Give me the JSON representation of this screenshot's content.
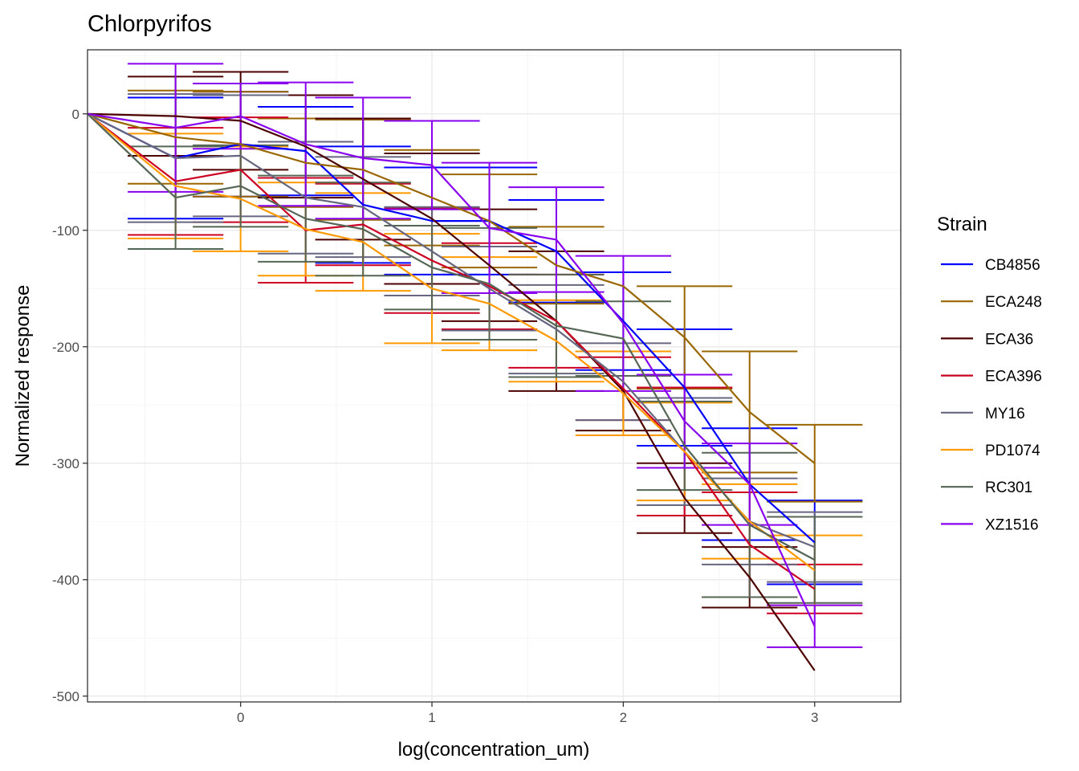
{
  "chart_data": {
    "type": "line",
    "title": "Chlorpyrifos",
    "xlabel": "log(concentration_um)",
    "ylabel": "Normalized response",
    "xlim": [
      -0.8,
      3.45
    ],
    "ylim": [
      -505,
      55
    ],
    "x_ticks": [
      0,
      1,
      2,
      3
    ],
    "x_tick_labels": [
      "0",
      "1",
      "2",
      "3"
    ],
    "y_ticks": [
      0,
      -100,
      -200,
      -300,
      -400,
      -500
    ],
    "y_tick_labels": [
      "0",
      "-100",
      "-200",
      "-300",
      "-400",
      "-500"
    ],
    "grid": true,
    "legend_title": "Strain",
    "legend_position": "right",
    "x": [
      -0.8,
      -0.34,
      0,
      0.34,
      0.64,
      1.0,
      1.3,
      1.65,
      2.0,
      2.32,
      2.66,
      3.0
    ],
    "series": [
      {
        "name": "CB4856",
        "color": "#0000ff",
        "values": [
          0,
          -38,
          -26,
          -32,
          -78,
          -92,
          -92,
          -118,
          -178,
          -235,
          -318,
          -368
        ],
        "err": [
          0,
          52,
          45,
          38,
          50,
          46,
          46,
          44,
          42,
          50,
          48,
          36
        ]
      },
      {
        "name": "ECA248",
        "color": "#996600",
        "values": [
          0,
          -20,
          -26,
          -42,
          -48,
          -72,
          -92,
          -130,
          -148,
          -192,
          -256,
          -300
        ],
        "err": [
          0,
          40,
          45,
          38,
          43,
          41,
          40,
          33,
          0,
          44,
          52,
          33
        ]
      },
      {
        "name": "ECA36",
        "color": "#4d0000",
        "values": [
          0,
          -2,
          -6,
          -28,
          -56,
          -90,
          -130,
          -178,
          -238,
          -330,
          -398,
          -478
        ],
        "err": [
          0,
          34,
          42,
          44,
          52,
          56,
          48,
          60,
          34,
          30,
          26,
          0
        ]
      },
      {
        "name": "ECA396",
        "color": "#cc0022",
        "values": [
          0,
          -58,
          -48,
          -100,
          -95,
          -126,
          -148,
          -178,
          -236,
          -290,
          -370,
          -408
        ],
        "err": [
          0,
          46,
          45,
          45,
          35,
          45,
          37,
          40,
          27,
          55,
          45,
          21
        ]
      },
      {
        "name": "MY16",
        "color": "#666680",
        "values": [
          0,
          -38,
          -36,
          -72,
          -80,
          -118,
          -150,
          -185,
          -230,
          -290,
          -350,
          -372
        ],
        "err": [
          0,
          55,
          52,
          48,
          43,
          38,
          36,
          38,
          33,
          46,
          37,
          30
        ]
      },
      {
        "name": "PD1074",
        "color": "#ff9900",
        "values": [
          0,
          -62,
          -73,
          -99,
          -110,
          -150,
          -163,
          -195,
          -240,
          -290,
          -350,
          -392
        ],
        "err": [
          0,
          45,
          45,
          40,
          42,
          47,
          40,
          35,
          36,
          42,
          32,
          30
        ]
      },
      {
        "name": "RC301",
        "color": "#556655",
        "values": [
          0,
          -72,
          -62,
          -90,
          -99,
          -132,
          -146,
          -182,
          -193,
          -285,
          -353,
          -383
        ],
        "err": [
          0,
          44,
          35,
          37,
          40,
          36,
          48,
          44,
          32,
          38,
          62,
          37
        ]
      },
      {
        "name": "XZ1516",
        "color": "#8800ee",
        "values": [
          0,
          -12,
          -2,
          -26,
          -38,
          -44,
          -98,
          -108,
          -180,
          -264,
          -318,
          -440
        ],
        "err": [
          0,
          55,
          28,
          53,
          52,
          38,
          56,
          45,
          58,
          40,
          35,
          18
        ]
      }
    ]
  }
}
